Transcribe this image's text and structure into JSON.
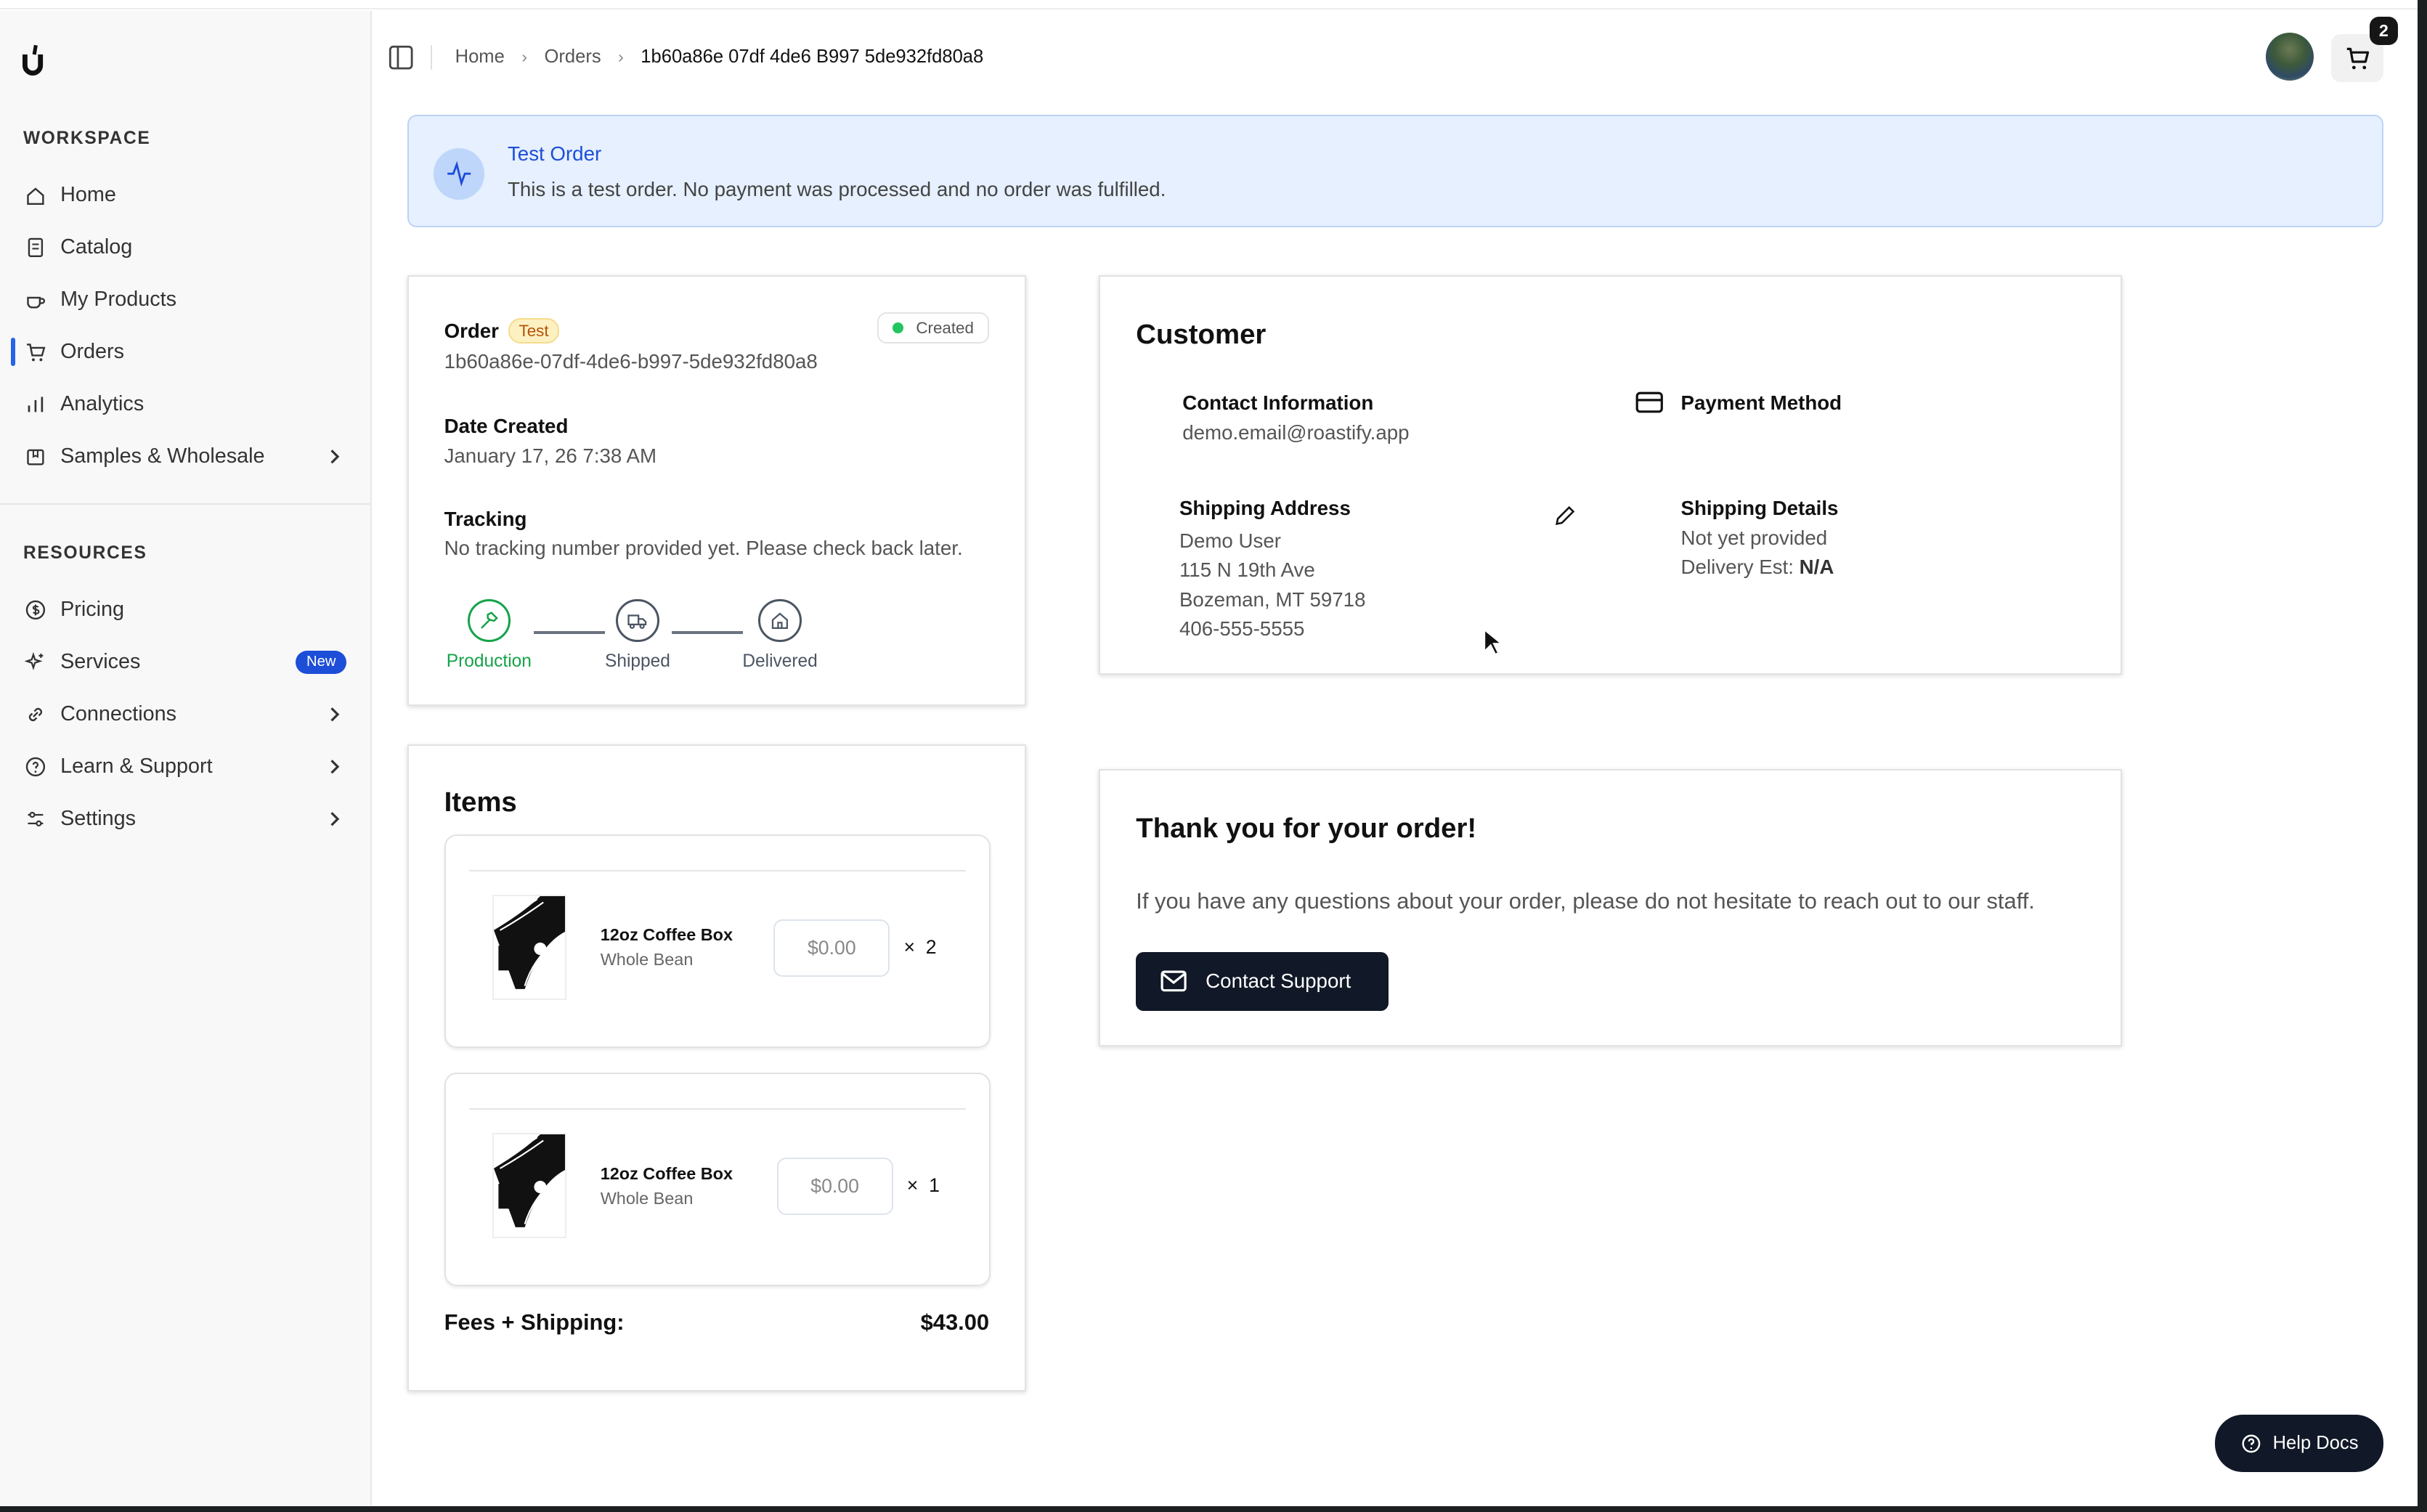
{
  "sidebar": {
    "workspace_label": "WORKSPACE",
    "resources_label": "RESOURCES",
    "workspace_items": [
      {
        "label": "Home",
        "icon": "home-icon"
      },
      {
        "label": "Catalog",
        "icon": "catalog-icon"
      },
      {
        "label": "My Products",
        "icon": "coffee-cup-icon"
      },
      {
        "label": "Orders",
        "icon": "cart-icon",
        "active": true
      },
      {
        "label": "Analytics",
        "icon": "bar-chart-icon"
      },
      {
        "label": "Samples & Wholesale",
        "icon": "package-icon",
        "chevron": true
      }
    ],
    "resource_items": [
      {
        "label": "Pricing",
        "icon": "dollar-icon"
      },
      {
        "label": "Services",
        "icon": "sparkles-icon",
        "badge": "New"
      },
      {
        "label": "Connections",
        "icon": "link-icon",
        "chevron": true
      },
      {
        "label": "Learn & Support",
        "icon": "help-circle-icon",
        "chevron": true
      },
      {
        "label": "Settings",
        "icon": "sliders-icon",
        "chevron": true
      }
    ]
  },
  "header": {
    "breadcrumb": [
      "Home",
      "Orders",
      "1b60a86e 07df 4de6 B997 5de932fd80a8"
    ],
    "cart_count": "2"
  },
  "banner": {
    "title": "Test Order",
    "description": "This is a test order. No payment was processed and no order was fulfilled."
  },
  "order": {
    "label": "Order",
    "test_badge": "Test",
    "status": "Created",
    "status_color": "#22c55e",
    "id": "1b60a86e-07df-4de6-b997-5de932fd80a8",
    "date_label": "Date Created",
    "date": "January 17, 26 7:38 AM",
    "tracking_label": "Tracking",
    "tracking": "No tracking number provided yet. Please check back later.",
    "steps": [
      {
        "label": "Production",
        "active": true
      },
      {
        "label": "Shipped"
      },
      {
        "label": "Delivered"
      }
    ]
  },
  "items": {
    "title": "Items",
    "list": [
      {
        "name": "12oz Coffee Box",
        "variant": "Whole Bean",
        "price": "$0.00",
        "qty": "2"
      },
      {
        "name": "12oz Coffee Box",
        "variant": "Whole Bean",
        "price": "$0.00",
        "qty": "1"
      }
    ],
    "fees_label": "Fees + Shipping:",
    "fees": "$43.00"
  },
  "customer": {
    "title": "Customer",
    "contact_label": "Contact Information",
    "email": "demo.email@roastify.app",
    "payment_label": "Payment Method",
    "shipping_label": "Shipping Address",
    "address": [
      "Demo User",
      "115 N 19th Ave",
      "Bozeman, MT 59718",
      "406-555-5555"
    ],
    "details_label": "Shipping Details",
    "details": "Not yet provided",
    "delivery_label": "Delivery Est:",
    "delivery": "N/A"
  },
  "thanks": {
    "title": "Thank you for your order!",
    "message": "If you have any questions about your order, please do not hesitate to reach out to our staff.",
    "button": "Contact Support"
  },
  "help_button": "Help Docs"
}
